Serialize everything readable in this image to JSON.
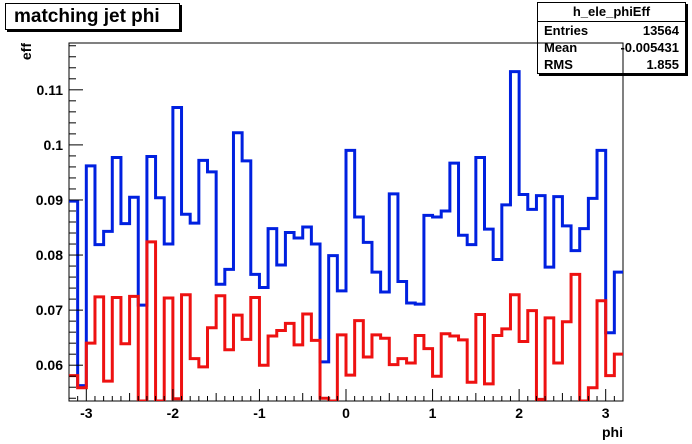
{
  "title": "matching jet phi",
  "stats": {
    "name": "h_ele_phiEff",
    "rows": [
      {
        "label": "Entries",
        "value": "13564"
      },
      {
        "label": "Mean",
        "value": "-0.005431"
      },
      {
        "label": "RMS",
        "value": "1.855"
      }
    ]
  },
  "chart_data": {
    "type": "line",
    "step": true,
    "xlabel": "phi",
    "ylabel": "eff",
    "xlim": [
      -3.2,
      3.2
    ],
    "ylim": [
      0.0535,
      0.1185
    ],
    "xticks": [
      "-3",
      "-2",
      "-1",
      "0",
      "1",
      "2",
      "3"
    ],
    "yticks": [
      "0.06",
      "0.07",
      "0.08",
      "0.09",
      "0.1",
      "0.11"
    ],
    "grid": false,
    "series": [
      {
        "color": "#0020e0",
        "x": [
          -3.2,
          -3.1,
          -3.0,
          -2.9,
          -2.8,
          -2.7,
          -2.6,
          -2.5,
          -2.4,
          -2.3,
          -2.2,
          -2.1,
          -2.0,
          -1.9,
          -1.8,
          -1.7,
          -1.6,
          -1.5,
          -1.4,
          -1.3,
          -1.2,
          -1.1,
          -1.0,
          -0.9,
          -0.8,
          -0.7,
          -0.6,
          -0.5,
          -0.4,
          -0.3,
          -0.2,
          -0.1,
          0.0,
          0.1,
          0.2,
          0.3,
          0.4,
          0.5,
          0.6,
          0.7,
          0.8,
          0.9,
          1.0,
          1.1,
          1.2,
          1.3,
          1.4,
          1.5,
          1.6,
          1.7,
          1.8,
          1.9,
          2.0,
          2.1,
          2.2,
          2.3,
          2.4,
          2.5,
          2.6,
          2.7,
          2.8,
          2.9,
          3.0,
          3.1
        ],
        "y": [
          0.0898,
          0.0563,
          0.0962,
          0.0819,
          0.0843,
          0.0977,
          0.0857,
          0.0905,
          0.0709,
          0.0979,
          0.0904,
          0.082,
          0.1068,
          0.0874,
          0.0858,
          0.0972,
          0.0951,
          0.0747,
          0.0774,
          0.1022,
          0.0971,
          0.0765,
          0.0741,
          0.0848,
          0.0782,
          0.0841,
          0.0831,
          0.0851,
          0.082,
          0.0606,
          0.0799,
          0.0735,
          0.099,
          0.0869,
          0.0823,
          0.0769,
          0.0733,
          0.0911,
          0.0752,
          0.0713,
          0.0711,
          0.0872,
          0.0869,
          0.088,
          0.0967,
          0.0836,
          0.0819,
          0.0977,
          0.0847,
          0.0792,
          0.0891,
          0.1133,
          0.091,
          0.0883,
          0.0908,
          0.0778,
          0.0906,
          0.0853,
          0.0808,
          0.0848,
          0.0903,
          0.099,
          0.0659,
          0.0769
        ]
      },
      {
        "color": "#ee1111",
        "x": [
          -3.2,
          -3.1,
          -3.0,
          -2.9,
          -2.8,
          -2.7,
          -2.6,
          -2.5,
          -2.4,
          -2.3,
          -2.2,
          -2.1,
          -2.0,
          -1.9,
          -1.8,
          -1.7,
          -1.6,
          -1.5,
          -1.4,
          -1.3,
          -1.2,
          -1.1,
          -1.0,
          -0.9,
          -0.8,
          -0.7,
          -0.6,
          -0.5,
          -0.4,
          -0.3,
          -0.2,
          -0.1,
          0.0,
          0.1,
          0.2,
          0.3,
          0.4,
          0.5,
          0.6,
          0.7,
          0.8,
          0.9,
          1.0,
          1.1,
          1.2,
          1.3,
          1.4,
          1.5,
          1.6,
          1.7,
          1.8,
          1.9,
          2.0,
          2.1,
          2.2,
          2.3,
          2.4,
          2.5,
          2.6,
          2.7,
          2.8,
          2.9,
          3.0,
          3.1
        ],
        "y": [
          0.0581,
          0.0559,
          0.064,
          0.0724,
          0.0571,
          0.0723,
          0.0639,
          0.0725,
          0.0535,
          0.0824,
          0.0535,
          0.0722,
          0.0539,
          0.0728,
          0.0612,
          0.0597,
          0.0668,
          0.0726,
          0.0628,
          0.0691,
          0.0647,
          0.0723,
          0.06,
          0.0653,
          0.0663,
          0.0676,
          0.0637,
          0.0693,
          0.0645,
          0.054,
          0.0535,
          0.0655,
          0.0582,
          0.0681,
          0.0615,
          0.0655,
          0.0649,
          0.0601,
          0.0612,
          0.0604,
          0.0654,
          0.063,
          0.058,
          0.0657,
          0.0653,
          0.0646,
          0.0569,
          0.0692,
          0.0566,
          0.0654,
          0.0666,
          0.0728,
          0.0643,
          0.0699,
          0.0538,
          0.0686,
          0.0604,
          0.0679,
          0.0765,
          0.0535,
          0.0559,
          0.0717,
          0.0581,
          0.062
        ]
      }
    ]
  }
}
